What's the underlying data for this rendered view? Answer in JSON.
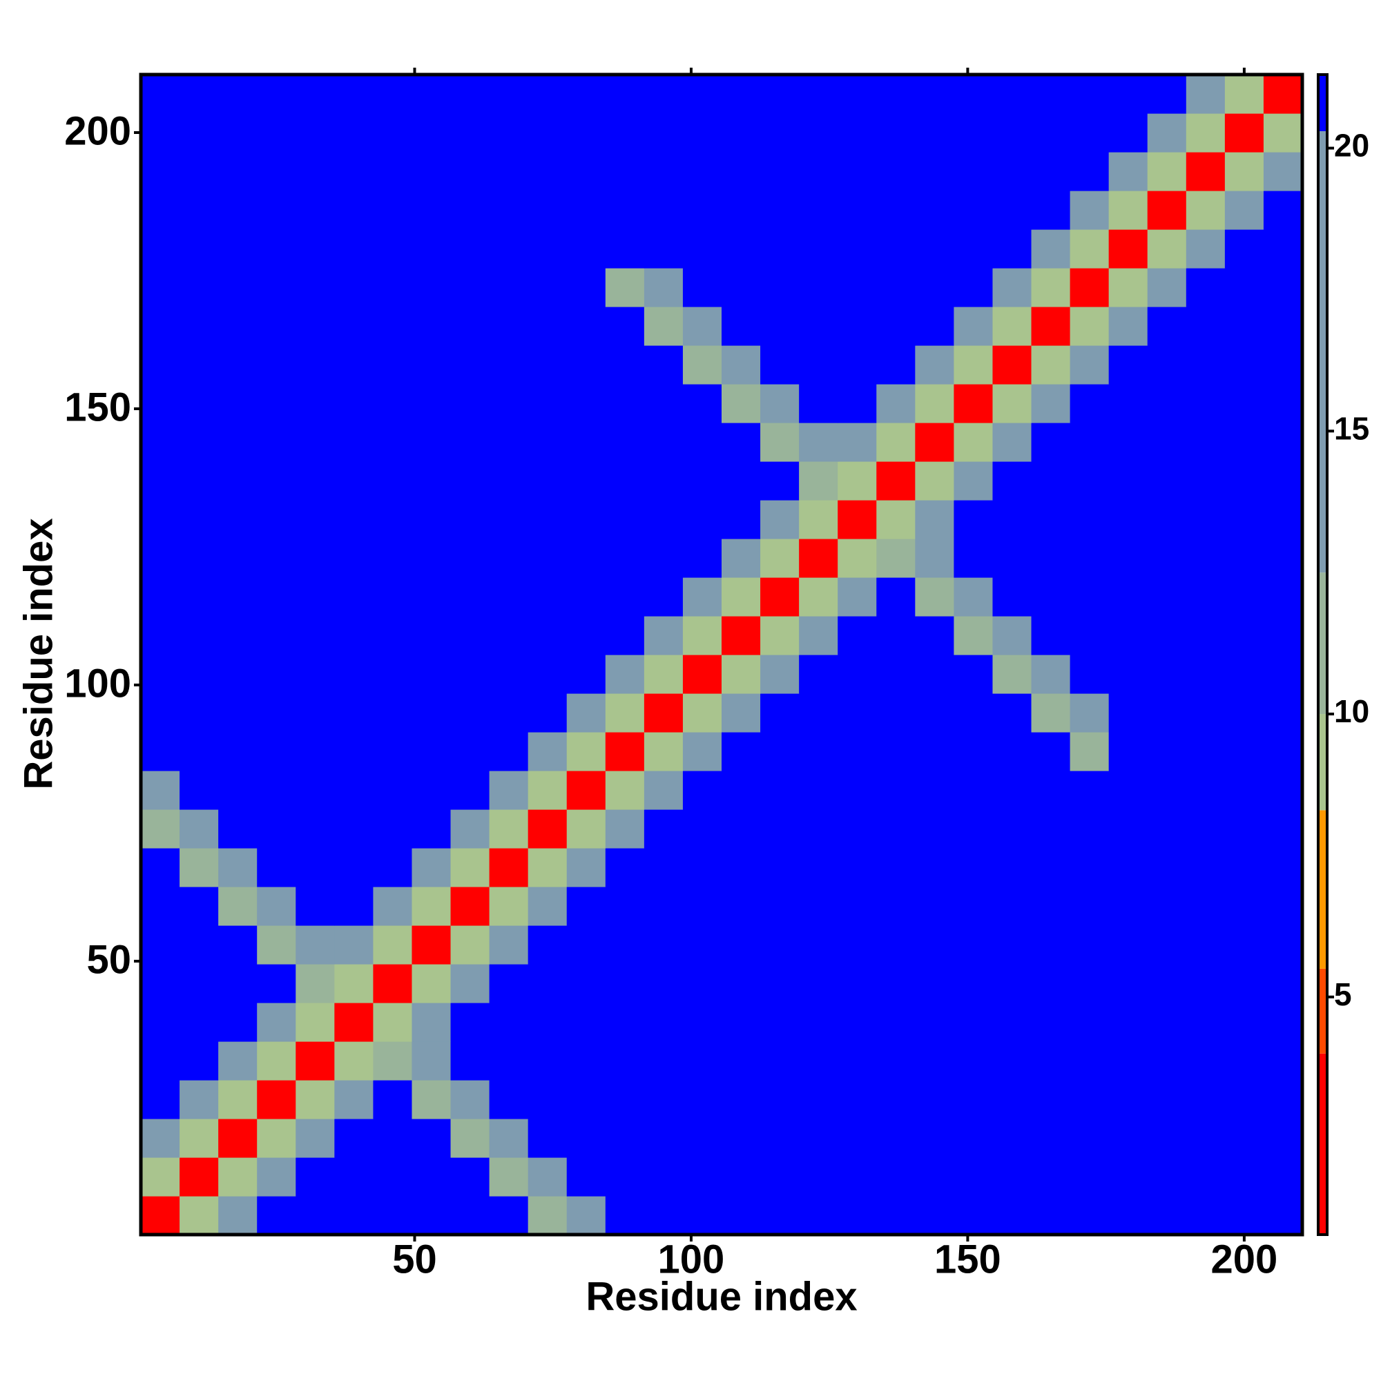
{
  "chart_data": {
    "type": "heatmap",
    "xlabel": "Residue index",
    "ylabel": "Residue index",
    "x": [
      4,
      11,
      18,
      25,
      32,
      39,
      46,
      53,
      60,
      67,
      74,
      81,
      88,
      95,
      102,
      109,
      116,
      123,
      130,
      137,
      144,
      151,
      158,
      165,
      172,
      179,
      186,
      193,
      200,
      207
    ],
    "y": [
      4,
      11,
      18,
      25,
      32,
      39,
      46,
      53,
      60,
      67,
      74,
      81,
      88,
      95,
      102,
      109,
      116,
      123,
      130,
      137,
      144,
      151,
      158,
      165,
      172,
      179,
      186,
      193,
      200,
      207
    ],
    "xlim": [
      0.5,
      210.5
    ],
    "ylim": [
      0.5,
      210.5
    ],
    "xticks": [
      50,
      100,
      150,
      200
    ],
    "yticks": [
      50,
      100,
      150,
      200
    ],
    "zlim": [
      0.8,
      21.3
    ],
    "zticks": [
      5,
      10,
      15,
      20
    ],
    "color_bands": [
      {
        "max": 4,
        "color": "#ff0000"
      },
      {
        "max": 5.5,
        "color": "#ff4a00"
      },
      {
        "max": 8.3,
        "color": "#ff9900"
      },
      {
        "max": 10,
        "color": "#a9c48e"
      },
      {
        "max": 12.5,
        "color": "#99b49a"
      },
      {
        "max": 20.3,
        "color": "#7f9cb0"
      },
      {
        "max": 21.3,
        "color": "#0000ff"
      }
    ],
    "z": [
      [
        3.8,
        9,
        15,
        21,
        21,
        21,
        21,
        21,
        21,
        21,
        11,
        13,
        21,
        21,
        21,
        21,
        21,
        21,
        21,
        21,
        21,
        21,
        21,
        21,
        21,
        21,
        21,
        21,
        21,
        21
      ],
      [
        9,
        3.8,
        9,
        15,
        21,
        21,
        21,
        21,
        21,
        11,
        13,
        21,
        21,
        21,
        21,
        21,
        21,
        21,
        21,
        21,
        21,
        21,
        21,
        21,
        21,
        21,
        21,
        21,
        21,
        21
      ],
      [
        15,
        9,
        3.8,
        9,
        15,
        21,
        21,
        21,
        11,
        13,
        21,
        21,
        21,
        21,
        21,
        21,
        21,
        21,
        21,
        21,
        21,
        21,
        21,
        21,
        21,
        21,
        21,
        21,
        21,
        21
      ],
      [
        21,
        15,
        9,
        3.8,
        9,
        15,
        21,
        11,
        13,
        21,
        21,
        21,
        21,
        21,
        21,
        21,
        21,
        21,
        21,
        21,
        21,
        21,
        21,
        21,
        21,
        21,
        21,
        21,
        21,
        21
      ],
      [
        21,
        21,
        15,
        9,
        3.8,
        9,
        11,
        13,
        21,
        21,
        21,
        21,
        21,
        21,
        21,
        21,
        21,
        21,
        21,
        21,
        21,
        21,
        21,
        21,
        21,
        21,
        21,
        21,
        21,
        21
      ],
      [
        21,
        21,
        21,
        15,
        9,
        3.8,
        9,
        15,
        21,
        21,
        21,
        21,
        21,
        21,
        21,
        21,
        21,
        21,
        21,
        21,
        21,
        21,
        21,
        21,
        21,
        21,
        21,
        21,
        21,
        21
      ],
      [
        21,
        21,
        21,
        21,
        11,
        9,
        3.8,
        9,
        15,
        21,
        21,
        21,
        21,
        21,
        21,
        21,
        21,
        21,
        21,
        21,
        21,
        21,
        21,
        21,
        21,
        21,
        21,
        21,
        21,
        21
      ],
      [
        21,
        21,
        21,
        11,
        13,
        15,
        9,
        3.8,
        9,
        15,
        21,
        21,
        21,
        21,
        21,
        21,
        21,
        21,
        21,
        21,
        21,
        21,
        21,
        21,
        21,
        21,
        21,
        21,
        21,
        21
      ],
      [
        21,
        21,
        11,
        13,
        21,
        21,
        15,
        9,
        3.8,
        9,
        15,
        21,
        21,
        21,
        21,
        21,
        21,
        21,
        21,
        21,
        21,
        21,
        21,
        21,
        21,
        21,
        21,
        21,
        21,
        21
      ],
      [
        21,
        11,
        13,
        21,
        21,
        21,
        21,
        15,
        9,
        3.8,
        9,
        15,
        21,
        21,
        21,
        21,
        21,
        21,
        21,
        21,
        21,
        21,
        21,
        21,
        21,
        21,
        21,
        21,
        21,
        21
      ],
      [
        11,
        13,
        21,
        21,
        21,
        21,
        21,
        21,
        15,
        9,
        3.8,
        9,
        15,
        21,
        21,
        21,
        21,
        21,
        21,
        21,
        21,
        21,
        21,
        21,
        21,
        21,
        21,
        21,
        21,
        21
      ],
      [
        13,
        21,
        21,
        21,
        21,
        21,
        21,
        21,
        21,
        15,
        9,
        3.8,
        9,
        15,
        21,
        21,
        21,
        21,
        21,
        21,
        21,
        21,
        21,
        21,
        21,
        21,
        21,
        21,
        21,
        21
      ],
      [
        21,
        21,
        21,
        21,
        21,
        21,
        21,
        21,
        21,
        21,
        15,
        9,
        3.8,
        9,
        15,
        21,
        21,
        21,
        21,
        21,
        21,
        21,
        21,
        21,
        11,
        21,
        21,
        21,
        21,
        21
      ],
      [
        21,
        21,
        21,
        21,
        21,
        21,
        21,
        21,
        21,
        21,
        21,
        15,
        9,
        3.8,
        9,
        15,
        21,
        21,
        21,
        21,
        21,
        21,
        21,
        11,
        13,
        21,
        21,
        21,
        21,
        21
      ],
      [
        21,
        21,
        21,
        21,
        21,
        21,
        21,
        21,
        21,
        21,
        21,
        21,
        15,
        9,
        3.8,
        9,
        15,
        21,
        21,
        21,
        21,
        21,
        11,
        13,
        21,
        21,
        21,
        21,
        21,
        21
      ],
      [
        21,
        21,
        21,
        21,
        21,
        21,
        21,
        21,
        21,
        21,
        21,
        21,
        21,
        15,
        9,
        3.8,
        9,
        15,
        21,
        21,
        21,
        11,
        13,
        21,
        21,
        21,
        21,
        21,
        21,
        21
      ],
      [
        21,
        21,
        21,
        21,
        21,
        21,
        21,
        21,
        21,
        21,
        21,
        21,
        21,
        21,
        15,
        9,
        3.8,
        9,
        15,
        21,
        11,
        13,
        21,
        21,
        21,
        21,
        21,
        21,
        21,
        21
      ],
      [
        21,
        21,
        21,
        21,
        21,
        21,
        21,
        21,
        21,
        21,
        21,
        21,
        21,
        21,
        21,
        15,
        9,
        3.8,
        9,
        11,
        13,
        21,
        21,
        21,
        21,
        21,
        21,
        21,
        21,
        21
      ],
      [
        21,
        21,
        21,
        21,
        21,
        21,
        21,
        21,
        21,
        21,
        21,
        21,
        21,
        21,
        21,
        21,
        15,
        9,
        3.8,
        9,
        15,
        21,
        21,
        21,
        21,
        21,
        21,
        21,
        21,
        21
      ],
      [
        21,
        21,
        21,
        21,
        21,
        21,
        21,
        21,
        21,
        21,
        21,
        21,
        21,
        21,
        21,
        21,
        21,
        11,
        9,
        3.8,
        9,
        15,
        21,
        21,
        21,
        21,
        21,
        21,
        21,
        21
      ],
      [
        21,
        21,
        21,
        21,
        21,
        21,
        21,
        21,
        21,
        21,
        21,
        21,
        21,
        21,
        21,
        21,
        11,
        13,
        15,
        9,
        3.8,
        9,
        15,
        21,
        21,
        21,
        21,
        21,
        21,
        21
      ],
      [
        21,
        21,
        21,
        21,
        21,
        21,
        21,
        21,
        21,
        21,
        21,
        21,
        21,
        21,
        21,
        11,
        13,
        21,
        21,
        15,
        9,
        3.8,
        9,
        15,
        21,
        21,
        21,
        21,
        21,
        21
      ],
      [
        21,
        21,
        21,
        21,
        21,
        21,
        21,
        21,
        21,
        21,
        21,
        21,
        21,
        21,
        11,
        13,
        21,
        21,
        21,
        21,
        15,
        9,
        3.8,
        9,
        15,
        21,
        21,
        21,
        21,
        21
      ],
      [
        21,
        21,
        21,
        21,
        21,
        21,
        21,
        21,
        21,
        21,
        21,
        21,
        21,
        11,
        13,
        21,
        21,
        21,
        21,
        21,
        21,
        15,
        9,
        3.8,
        9,
        15,
        21,
        21,
        21,
        21
      ],
      [
        21,
        21,
        21,
        21,
        21,
        21,
        21,
        21,
        21,
        21,
        21,
        21,
        11,
        13,
        21,
        21,
        21,
        21,
        21,
        21,
        21,
        21,
        15,
        9,
        3.8,
        9,
        15,
        21,
        21,
        21
      ],
      [
        21,
        21,
        21,
        21,
        21,
        21,
        21,
        21,
        21,
        21,
        21,
        21,
        21,
        21,
        21,
        21,
        21,
        21,
        21,
        21,
        21,
        21,
        21,
        15,
        9,
        3.8,
        9,
        15,
        21,
        21
      ],
      [
        21,
        21,
        21,
        21,
        21,
        21,
        21,
        21,
        21,
        21,
        21,
        21,
        21,
        21,
        21,
        21,
        21,
        21,
        21,
        21,
        21,
        21,
        21,
        21,
        15,
        9,
        3.8,
        9,
        15,
        21
      ],
      [
        21,
        21,
        21,
        21,
        21,
        21,
        21,
        21,
        21,
        21,
        21,
        21,
        21,
        21,
        21,
        21,
        21,
        21,
        21,
        21,
        21,
        21,
        21,
        21,
        21,
        15,
        9,
        3.8,
        9,
        15
      ],
      [
        21,
        21,
        21,
        21,
        21,
        21,
        21,
        21,
        21,
        21,
        21,
        21,
        21,
        21,
        21,
        21,
        21,
        21,
        21,
        21,
        21,
        21,
        21,
        21,
        21,
        21,
        15,
        9,
        3.8,
        9
      ],
      [
        21,
        21,
        21,
        21,
        21,
        21,
        21,
        21,
        21,
        21,
        21,
        21,
        21,
        21,
        21,
        21,
        21,
        21,
        21,
        21,
        21,
        21,
        21,
        21,
        21,
        21,
        21,
        15,
        9,
        3.8
      ]
    ]
  }
}
